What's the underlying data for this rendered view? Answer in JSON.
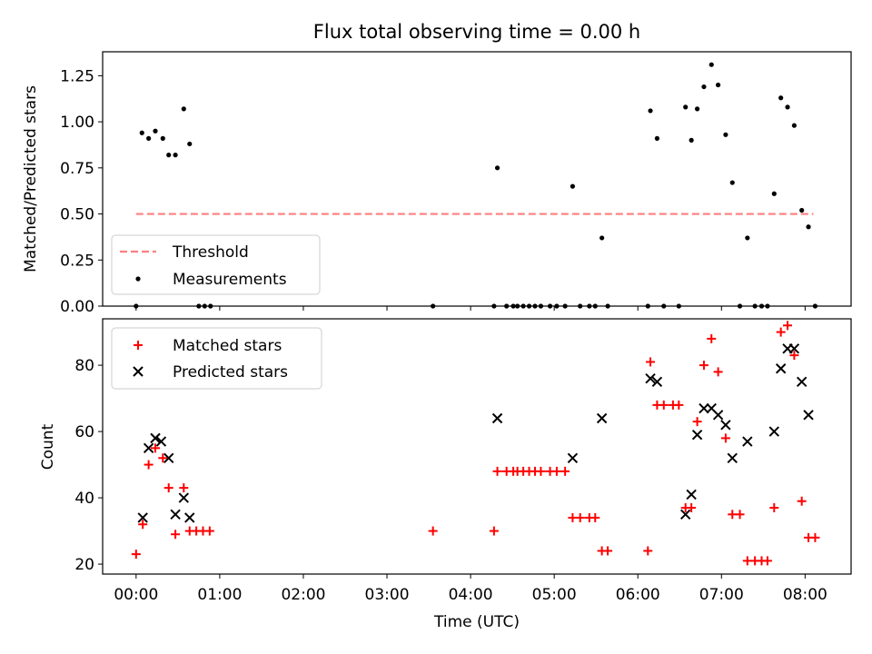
{
  "colors": {
    "threshold": "#ff7f7f",
    "measure": "#000000",
    "matched": "#ff0000",
    "predicted": "#000000",
    "frame": "#000000",
    "legend_edge": "#cccccc"
  },
  "chart_data": [
    {
      "type": "scatter",
      "title": "Flux total observing time = 0.00 h",
      "xlabel": "",
      "ylabel": "Matched/Predicted stars",
      "xunit": "hours (UTC)",
      "xlim": [
        -0.4,
        8.55
      ],
      "ylim": [
        0,
        1.38
      ],
      "yticks": [
        0,
        0.25,
        0.5,
        0.75,
        1.0,
        1.25
      ],
      "yticklabels": [
        "0.00",
        "0.25",
        "0.50",
        "0.75",
        "1.00",
        "1.25"
      ],
      "legend_position": "lower left",
      "threshold": {
        "name": "Threshold",
        "y": 0.5,
        "x_range": [
          0,
          8.1
        ],
        "style": "dashed"
      },
      "measurements": {
        "name": "Measurements",
        "x": [
          0.07,
          0.15,
          0.23,
          0.32,
          0.39,
          0.47,
          0.57,
          0.64,
          0.0,
          0.75,
          0.82,
          0.89,
          3.55,
          4.32,
          4.28,
          4.43,
          4.51,
          4.56,
          4.63,
          4.7,
          4.77,
          4.84,
          4.95,
          5.03,
          5.13,
          5.22,
          5.31,
          5.42,
          5.49,
          5.57,
          5.64,
          6.12,
          6.15,
          6.23,
          6.31,
          6.49,
          6.57,
          6.64,
          6.71,
          6.79,
          6.88,
          6.96,
          7.05,
          7.13,
          7.22,
          7.31,
          7.4,
          7.48,
          7.55,
          7.63,
          7.71,
          7.79,
          7.87,
          7.96,
          8.04,
          8.12
        ],
        "y": [
          0.94,
          0.91,
          0.95,
          0.91,
          0.82,
          0.82,
          1.07,
          0.88,
          0,
          0,
          0,
          0,
          0,
          0.75,
          0,
          0,
          0,
          0,
          0,
          0,
          0,
          0,
          0,
          0,
          0,
          0.65,
          0,
          0,
          0,
          0.37,
          0,
          0,
          1.06,
          0.91,
          0,
          0,
          1.08,
          0.9,
          1.07,
          1.19,
          1.31,
          1.2,
          0.93,
          0.67,
          0,
          0.37,
          0,
          0,
          0,
          0.61,
          1.13,
          1.08,
          0.98,
          0.52,
          0.43,
          0
        ]
      }
    },
    {
      "type": "scatter",
      "title": "",
      "xlabel": "Time (UTC)",
      "ylabel": "Count",
      "xunit": "hours (UTC)",
      "xlim": [
        -0.4,
        8.55
      ],
      "ylim": [
        17,
        94
      ],
      "yticks": [
        20,
        40,
        60,
        80
      ],
      "xticks": [
        0,
        1,
        2,
        3,
        4,
        5,
        6,
        7,
        8
      ],
      "xticklabels": [
        "00:00",
        "01:00",
        "02:00",
        "03:00",
        "04:00",
        "05:00",
        "06:00",
        "07:00",
        "08:00"
      ],
      "legend_position": "upper left",
      "series": [
        {
          "name": "Matched stars",
          "marker": "plus",
          "x": [
            0.0,
            0.08,
            0.15,
            0.23,
            0.32,
            0.39,
            0.47,
            0.57,
            0.64,
            0.72,
            0.8,
            0.88,
            3.55,
            4.28,
            4.32,
            4.43,
            4.51,
            4.56,
            4.63,
            4.7,
            4.77,
            4.84,
            4.95,
            5.03,
            5.13,
            5.22,
            5.31,
            5.42,
            5.49,
            5.57,
            5.64,
            6.12,
            6.15,
            6.23,
            6.31,
            6.42,
            6.49,
            6.57,
            6.64,
            6.71,
            6.79,
            6.88,
            6.96,
            7.05,
            7.13,
            7.22,
            7.31,
            7.4,
            7.48,
            7.55,
            7.63,
            7.71,
            7.79,
            7.87,
            7.96,
            8.04,
            8.12
          ],
          "y": [
            23,
            32,
            50,
            55,
            52,
            43,
            29,
            43,
            30,
            30,
            30,
            30,
            30,
            30,
            48,
            48,
            48,
            48,
            48,
            48,
            48,
            48,
            48,
            48,
            48,
            34,
            34,
            34,
            34,
            24,
            24,
            24,
            81,
            68,
            68,
            68,
            68,
            37,
            37,
            63,
            80,
            88,
            78,
            58,
            35,
            35,
            21,
            21,
            21,
            21,
            37,
            90,
            92,
            83,
            39,
            28,
            28
          ]
        },
        {
          "name": "Predicted stars",
          "marker": "x",
          "x": [
            0.08,
            0.15,
            0.23,
            0.3,
            0.39,
            0.47,
            0.57,
            0.64,
            4.32,
            5.22,
            5.57,
            6.15,
            6.23,
            6.57,
            6.64,
            6.71,
            6.79,
            6.88,
            6.96,
            7.05,
            7.13,
            7.31,
            7.63,
            7.71,
            7.79,
            7.87,
            7.96,
            8.04
          ],
          "y": [
            34,
            55,
            58,
            57,
            52,
            35,
            40,
            34,
            64,
            52,
            64,
            76,
            75,
            35,
            41,
            59,
            67,
            67,
            65,
            62,
            52,
            57,
            60,
            79,
            85,
            85,
            75,
            65
          ]
        }
      ]
    }
  ]
}
